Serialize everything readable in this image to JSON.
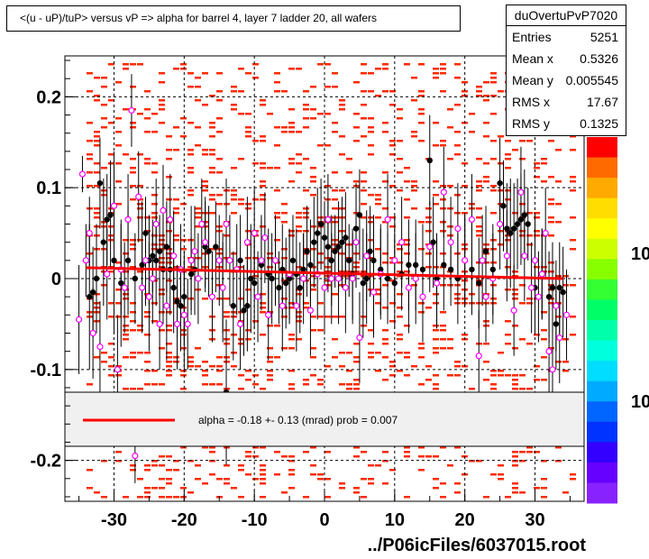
{
  "title": "<(u - uP)/tuP> versus   vP => alpha for barrel 4, layer 7 ladder 20, all wafers",
  "stats": {
    "name": "duOvertuPvP7020",
    "rows": [
      {
        "key": "Entries",
        "value": "5251"
      },
      {
        "key": "Mean x",
        "value": "0.5326"
      },
      {
        "key": "Mean y",
        "value": "0.005545"
      },
      {
        "key": "RMS x",
        "value": "17.67"
      },
      {
        "key": "RMS y",
        "value": "0.1325"
      }
    ]
  },
  "fit_label": "alpha =   -0.18 +-  0.13 (mrad) prob = 0.007",
  "footer": "../P06icFiles/6037015.root",
  "colors": {
    "red": "#ff0000",
    "histogram": "#ff2a00",
    "black": "#000000",
    "magenta": "#ff00ff",
    "fit_box_bg": "#f0f0f0"
  },
  "chart_data": {
    "type": "scatter",
    "xlim": [
      -37,
      37
    ],
    "ylim": [
      -0.245,
      0.245
    ],
    "x_ticks": [
      -30,
      -20,
      -10,
      0,
      10,
      20,
      30
    ],
    "y_ticks": [
      -0.2,
      -0.1,
      0,
      0.1,
      0.2
    ],
    "y_tick_labels": [
      "-0.2",
      "-0.1",
      "0",
      "0.1",
      "0.2"
    ],
    "x_tick_labels": [
      "-30",
      "-20",
      "-10",
      "0",
      "10",
      "20",
      "30"
    ],
    "palette_labels": [
      "10",
      "10"
    ],
    "grid": true,
    "fit_line": {
      "x": [
        -34,
        34
      ],
      "y": [
        0.012,
        0.0
      ]
    },
    "black_points": [
      [
        -33.5,
        -0.02,
        0.08
      ],
      [
        -33.0,
        -0.015,
        0.05
      ],
      [
        -32.5,
        0.0,
        0.06
      ],
      [
        -32.0,
        0.105,
        0.05
      ],
      [
        -31.5,
        0.04,
        0.07
      ],
      [
        -31.0,
        0.065,
        0.05
      ],
      [
        -30.5,
        0.07,
        0.06
      ],
      [
        -30.0,
        0.02,
        0.08
      ],
      [
        -29.0,
        -0.005,
        0.07
      ],
      [
        -28.0,
        0.02,
        0.06
      ],
      [
        -27.0,
        0.0,
        0.05
      ],
      [
        -26.0,
        0.015,
        0.07
      ],
      [
        -25.5,
        0.05,
        0.04
      ],
      [
        -25.0,
        0.02,
        0.05
      ],
      [
        -24.5,
        0.025,
        0.04
      ],
      [
        -24.0,
        0.02,
        0.05
      ],
      [
        -23.5,
        0.03,
        0.04
      ],
      [
        -23.0,
        0.01,
        0.06
      ],
      [
        -22.5,
        0.035,
        0.05
      ],
      [
        -22.0,
        0.01,
        0.05
      ],
      [
        -21.5,
        -0.01,
        0.05
      ],
      [
        -21.0,
        -0.025,
        0.04
      ],
      [
        -20.5,
        -0.03,
        0.05
      ],
      [
        -20.0,
        -0.02,
        0.05
      ],
      [
        -19.0,
        0.005,
        0.04
      ],
      [
        -18.5,
        0.01,
        0.05
      ],
      [
        -17.0,
        0.035,
        0.05
      ],
      [
        -16.5,
        0.03,
        0.05
      ],
      [
        -15.5,
        0.035,
        0.05
      ],
      [
        -14.5,
        -0.01,
        0.06
      ],
      [
        -14.0,
        -0.125,
        0.08
      ],
      [
        -13.0,
        -0.03,
        0.06
      ],
      [
        -12.0,
        0.02,
        0.05
      ],
      [
        -11.5,
        -0.035,
        0.05
      ],
      [
        -11.0,
        -0.03,
        0.05
      ],
      [
        -10.5,
        0.0,
        0.06
      ],
      [
        -10.0,
        -0.005,
        0.05
      ],
      [
        -9.0,
        0.015,
        0.05
      ],
      [
        -8.0,
        0.005,
        0.05
      ],
      [
        -7.5,
        0.0,
        0.05
      ],
      [
        -6.5,
        -0.01,
        0.04
      ],
      [
        -6.0,
        0.01,
        0.05
      ],
      [
        -5.5,
        -0.005,
        0.05
      ],
      [
        -5.0,
        0.0,
        0.05
      ],
      [
        -4.5,
        0.02,
        0.05
      ],
      [
        -4.0,
        0.005,
        0.05
      ],
      [
        -3.5,
        -0.01,
        0.05
      ],
      [
        -3.0,
        0.01,
        0.04
      ],
      [
        -2.5,
        0.03,
        0.05
      ],
      [
        -2.0,
        0.015,
        0.05
      ],
      [
        -1.5,
        0.04,
        0.05
      ],
      [
        -1.0,
        0.05,
        0.05
      ],
      [
        -0.5,
        0.06,
        0.05
      ],
      [
        0.0,
        0.045,
        0.04
      ],
      [
        0.5,
        0.035,
        0.05
      ],
      [
        1.0,
        0.02,
        0.05
      ],
      [
        1.5,
        0.03,
        0.04
      ],
      [
        2.0,
        0.035,
        0.05
      ],
      [
        2.5,
        0.04,
        0.05
      ],
      [
        3.0,
        0.045,
        0.05
      ],
      [
        3.5,
        0.02,
        0.04
      ],
      [
        4.0,
        0.005,
        0.05
      ],
      [
        4.5,
        0.055,
        0.05
      ],
      [
        5.0,
        0.07,
        0.05
      ],
      [
        5.5,
        -0.005,
        0.06
      ],
      [
        6.0,
        0.0,
        0.05
      ],
      [
        6.5,
        0.03,
        0.05
      ],
      [
        7.0,
        0.02,
        0.05
      ],
      [
        8.0,
        0.01,
        0.05
      ],
      [
        9.0,
        0.0,
        0.05
      ],
      [
        10.0,
        -0.005,
        0.05
      ],
      [
        11.0,
        0.005,
        0.04
      ],
      [
        12.0,
        0.015,
        0.05
      ],
      [
        13.0,
        0.015,
        0.05
      ],
      [
        14.0,
        0.01,
        0.05
      ],
      [
        15.0,
        0.13,
        0.05
      ],
      [
        15.5,
        0.04,
        0.05
      ],
      [
        16.0,
        0.0,
        0.05
      ],
      [
        17.0,
        0.015,
        0.05
      ],
      [
        18.0,
        0.01,
        0.04
      ],
      [
        19.0,
        0.0,
        0.05
      ],
      [
        20.0,
        0.02,
        0.05
      ],
      [
        21.0,
        0.01,
        0.05
      ],
      [
        22.0,
        -0.005,
        0.05
      ],
      [
        23.0,
        0.03,
        0.05
      ],
      [
        24.0,
        0.01,
        0.05
      ],
      [
        25.0,
        0.105,
        0.05
      ],
      [
        25.5,
        0.08,
        0.05
      ],
      [
        26.0,
        0.055,
        0.05
      ],
      [
        26.5,
        0.05,
        0.06
      ],
      [
        27.0,
        0.055,
        0.05
      ],
      [
        27.5,
        0.06,
        0.05
      ],
      [
        28.0,
        0.065,
        0.05
      ],
      [
        28.5,
        0.07,
        0.05
      ],
      [
        29.0,
        0.06,
        0.04
      ],
      [
        30.0,
        -0.01,
        0.05
      ],
      [
        31.0,
        0.005,
        0.05
      ],
      [
        32.0,
        -0.02,
        0.05
      ],
      [
        32.5,
        -0.01,
        0.05
      ],
      [
        33.0,
        -0.05,
        0.05
      ],
      [
        33.5,
        -0.01,
        0.05
      ],
      [
        34.0,
        -0.015,
        0.05
      ]
    ],
    "magenta_points": [
      [
        -35.0,
        -0.045,
        0.06
      ],
      [
        -34.5,
        0.115,
        0.02
      ],
      [
        -34.0,
        0.02,
        0.04
      ],
      [
        -33.5,
        0.05,
        0.04
      ],
      [
        -33.0,
        -0.06,
        0.05
      ],
      [
        -32.0,
        -0.075,
        0.05
      ],
      [
        -31.0,
        0.005,
        0.05
      ],
      [
        -30.0,
        0.08,
        0.06
      ],
      [
        -29.5,
        -0.1,
        0.06
      ],
      [
        -29.0,
        0.01,
        0.05
      ],
      [
        -28.5,
        -0.01,
        0.05
      ],
      [
        -28.0,
        0.065,
        0.05
      ],
      [
        -27.5,
        0.185,
        0.04
      ],
      [
        -27.0,
        -0.195,
        0.03
      ],
      [
        -26.5,
        0.09,
        0.05
      ],
      [
        -26.0,
        -0.01,
        0.05
      ],
      [
        -25.5,
        0.02,
        0.05
      ],
      [
        -25.0,
        -0.02,
        0.06
      ],
      [
        -24.5,
        0.0,
        0.05
      ],
      [
        -24.0,
        0.06,
        0.05
      ],
      [
        -23.5,
        -0.05,
        0.05
      ],
      [
        -23.0,
        0.075,
        0.05
      ],
      [
        -22.5,
        -0.03,
        0.06
      ],
      [
        -22.0,
        0.065,
        0.05
      ],
      [
        -21.5,
        0.025,
        0.05
      ],
      [
        -21.0,
        -0.05,
        0.05
      ],
      [
        -20.5,
        0.01,
        0.05
      ],
      [
        -20.0,
        -0.04,
        0.06
      ],
      [
        -19.5,
        -0.05,
        0.05
      ],
      [
        -19.0,
        0.02,
        0.06
      ],
      [
        -18.5,
        0.03,
        0.05
      ],
      [
        -18.0,
        0.0,
        0.05
      ],
      [
        -17.5,
        0.06,
        0.05
      ],
      [
        -17.0,
        0.04,
        0.05
      ],
      [
        -16.0,
        -0.02,
        0.05
      ],
      [
        -15.0,
        0.02,
        0.05
      ],
      [
        -14.5,
        -0.01,
        0.05
      ],
      [
        -14.0,
        0.06,
        0.05
      ],
      [
        -13.5,
        0.02,
        0.05
      ],
      [
        -12.5,
        0.01,
        0.05
      ],
      [
        -12.0,
        -0.05,
        0.05
      ],
      [
        -11.0,
        0.04,
        0.05
      ],
      [
        -10.0,
        0.05,
        0.05
      ],
      [
        -9.5,
        -0.02,
        0.05
      ],
      [
        -9.0,
        0.02,
        0.05
      ],
      [
        -8.5,
        0.045,
        0.05
      ],
      [
        -8.0,
        -0.04,
        0.05
      ],
      [
        -7.0,
        0.02,
        0.05
      ],
      [
        -6.0,
        -0.03,
        0.05
      ],
      [
        -5.0,
        0.005,
        0.05
      ],
      [
        -4.0,
        -0.03,
        0.05
      ],
      [
        -3.0,
        0.0,
        0.05
      ],
      [
        -2.0,
        -0.035,
        0.05
      ],
      [
        -1.0,
        0.005,
        0.05
      ],
      [
        0.0,
        -0.01,
        0.05
      ],
      [
        0.5,
        0.065,
        0.05
      ],
      [
        1.0,
        0.0,
        0.05
      ],
      [
        2.0,
        0.0,
        0.05
      ],
      [
        3.0,
        -0.01,
        0.05
      ],
      [
        4.0,
        0.0,
        0.05
      ],
      [
        4.5,
        0.04,
        0.05
      ],
      [
        5.0,
        -0.065,
        0.05
      ],
      [
        6.0,
        0.025,
        0.05
      ],
      [
        7.0,
        -0.015,
        0.05
      ],
      [
        8.0,
        0.005,
        0.05
      ],
      [
        9.0,
        0.065,
        0.05
      ],
      [
        10.0,
        0.02,
        0.05
      ],
      [
        11.0,
        0.04,
        0.05
      ],
      [
        12.0,
        -0.01,
        0.05
      ],
      [
        13.0,
        0.0,
        0.05
      ],
      [
        14.0,
        -0.02,
        0.05
      ],
      [
        15.0,
        0.035,
        0.05
      ],
      [
        16.0,
        -0.005,
        0.05
      ],
      [
        17.0,
        0.095,
        0.05
      ],
      [
        18.0,
        0.04,
        0.05
      ],
      [
        19.0,
        0.055,
        0.05
      ],
      [
        20.0,
        0.02,
        0.05
      ],
      [
        21.0,
        0.065,
        0.05
      ],
      [
        22.0,
        -0.085,
        0.05
      ],
      [
        22.5,
        0.02,
        0.05
      ],
      [
        23.0,
        -0.02,
        0.05
      ],
      [
        24.0,
        0.0,
        0.05
      ],
      [
        25.0,
        0.06,
        0.05
      ],
      [
        26.0,
        0.025,
        0.05
      ],
      [
        27.0,
        -0.035,
        0.05
      ],
      [
        28.0,
        0.095,
        0.05
      ],
      [
        28.5,
        0.025,
        0.05
      ],
      [
        29.5,
        -0.01,
        0.05
      ],
      [
        30.0,
        0.02,
        0.05
      ],
      [
        30.5,
        -0.02,
        0.05
      ],
      [
        31.0,
        0.005,
        0.05
      ],
      [
        31.5,
        0.05,
        0.05
      ],
      [
        32.0,
        -0.08,
        0.05
      ],
      [
        32.5,
        -0.1,
        0.05
      ],
      [
        33.0,
        -0.03,
        0.05
      ],
      [
        33.5,
        -0.065,
        0.05
      ],
      [
        34.5,
        -0.04,
        0.05
      ]
    ]
  }
}
